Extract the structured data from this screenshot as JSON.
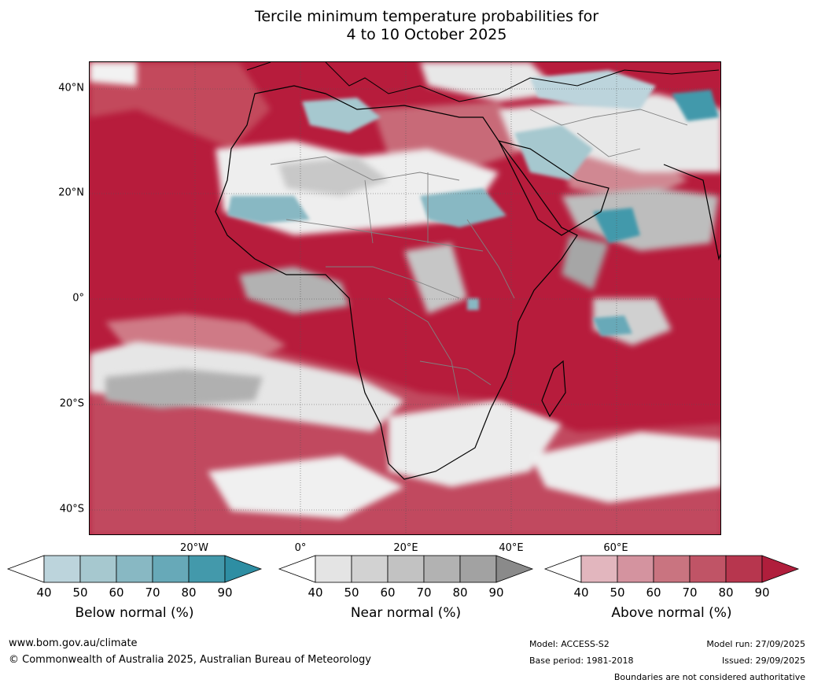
{
  "title_line1": "Tercile minimum temperature probabilities for",
  "title_line2": "4 to 10 October 2025",
  "map": {
    "lat_labels": [
      "40°N",
      "20°N",
      "0°",
      "20°S",
      "40°S"
    ],
    "lon_labels": [
      "20°W",
      "0°",
      "20°E",
      "40°E",
      "60°E"
    ],
    "colors": {
      "ocean_above": "#b71c3c",
      "land_outline": "#000000",
      "border": "#808080"
    }
  },
  "colorbars": [
    {
      "label": "Below normal (%)",
      "ticks": [
        "40",
        "50",
        "60",
        "70",
        "80",
        "90"
      ],
      "colors": [
        "#ffffff",
        "#bcd4dc",
        "#a6c8cf",
        "#88b8c3",
        "#67a9b8",
        "#4399ab",
        "#2e8ea3"
      ]
    },
    {
      "label": "Near normal (%)",
      "ticks": [
        "40",
        "50",
        "60",
        "70",
        "80",
        "90"
      ],
      "colors": [
        "#ffffff",
        "#e4e4e4",
        "#d2d2d2",
        "#c2c2c2",
        "#b2b2b2",
        "#a2a2a2",
        "#8a8a8a"
      ]
    },
    {
      "label": "Above normal (%)",
      "ticks": [
        "40",
        "50",
        "60",
        "70",
        "80",
        "90"
      ],
      "colors": [
        "#ffffff",
        "#e2b6be",
        "#d4939f",
        "#c97480",
        "#c05466",
        "#b7364e",
        "#b01e3c"
      ]
    }
  ],
  "footer": {
    "website": "www.bom.gov.au/climate",
    "copyright": "© Commonwealth of Australia 2025, Australian Bureau of Meteorology",
    "model": "Model: ACCESS-S2",
    "base_period": "Base period: 1981-2018",
    "model_run": "Model run: 27/09/2025",
    "issued": "Issued: 29/09/2025",
    "disclaimer": "Boundaries are not considered authoritative"
  }
}
